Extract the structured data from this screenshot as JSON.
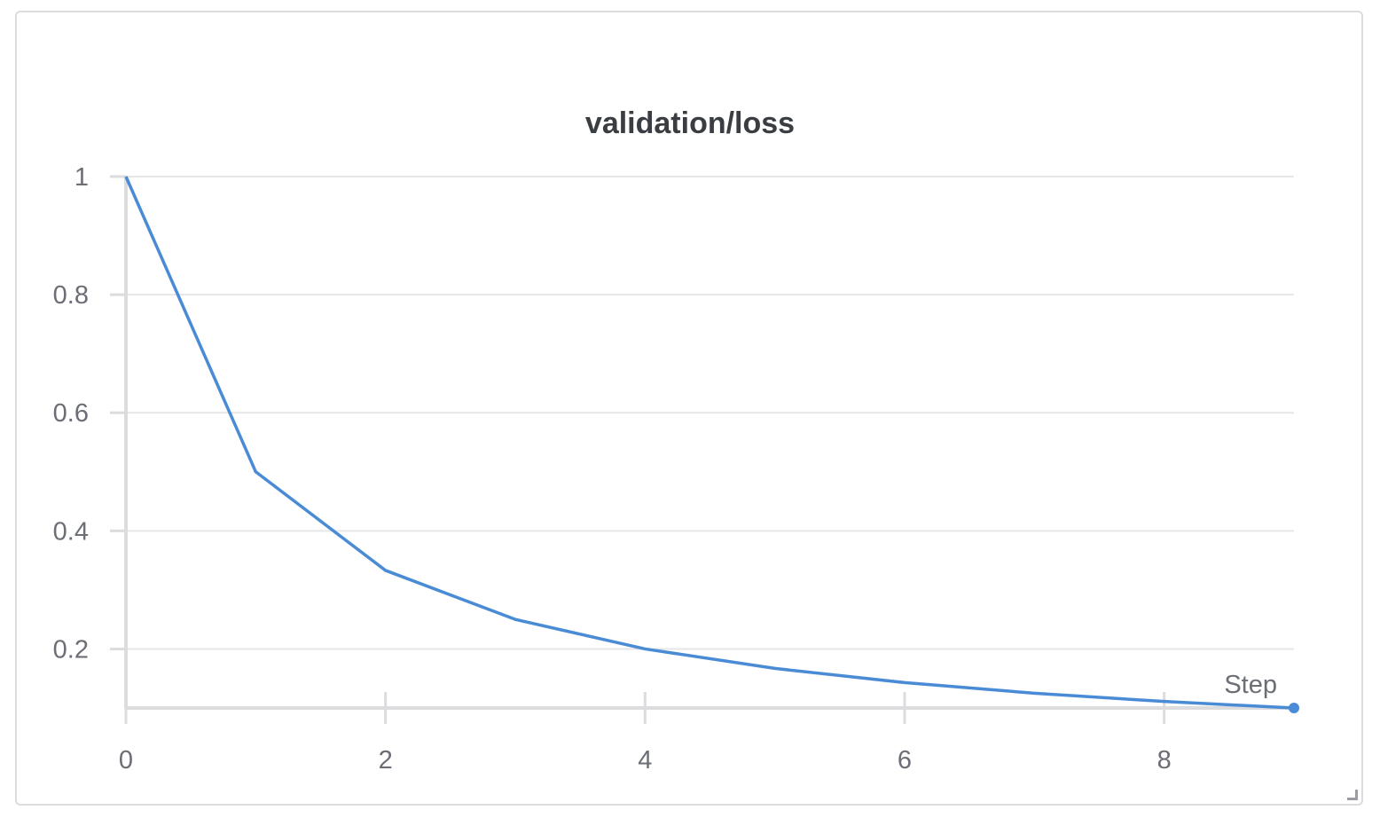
{
  "chart_data": {
    "type": "line",
    "title": "validation/loss",
    "xlabel": "Step",
    "ylabel": "",
    "xlim": [
      0,
      9
    ],
    "ylim": [
      0.1,
      1
    ],
    "x_ticks": [
      0,
      2,
      4,
      6,
      8
    ],
    "x_tick_labels": [
      "0",
      "2",
      "4",
      "6",
      "8"
    ],
    "y_ticks": [
      0.2,
      0.4,
      0.6,
      0.8,
      1
    ],
    "y_tick_labels": [
      "0.2",
      "0.4",
      "0.6",
      "0.8",
      "1"
    ],
    "grid": true,
    "series": [
      {
        "color": "#4a8bd6",
        "x": [
          0,
          1,
          2,
          3,
          4,
          5,
          6,
          7,
          8,
          9
        ],
        "y": [
          1.0,
          0.5,
          0.333,
          0.25,
          0.2,
          0.167,
          0.143,
          0.125,
          0.111,
          0.1
        ]
      }
    ]
  },
  "colors": {
    "line": "#4a8bd6",
    "grid": "#e6e6e8",
    "axis": "#dcdcde",
    "text": "#6b6e75",
    "title": "#3a3d42"
  }
}
